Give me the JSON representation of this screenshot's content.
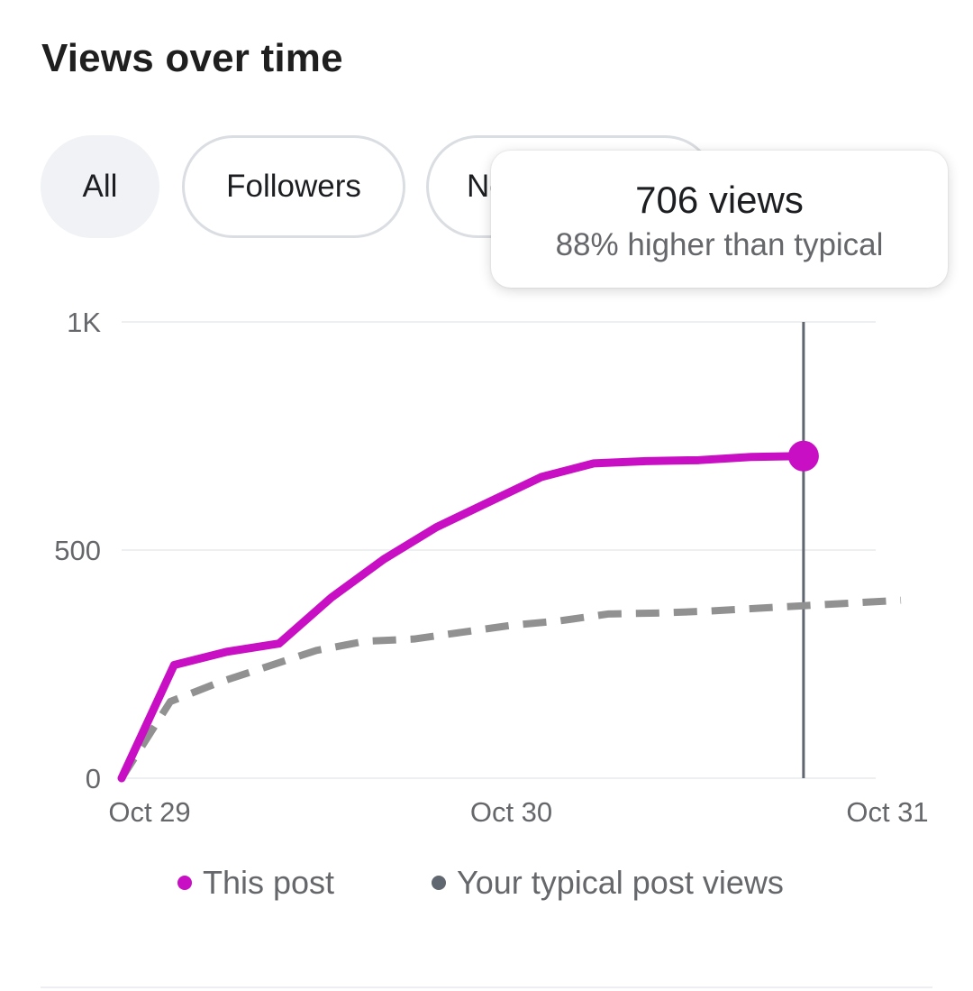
{
  "header": {
    "title": "Views over time"
  },
  "filters": {
    "items": [
      {
        "label": "All",
        "active": true
      },
      {
        "label": "Followers",
        "active": false
      },
      {
        "label": "Non-followers",
        "active": false
      }
    ]
  },
  "tooltip": {
    "value": "706 views",
    "subtitle": "88% higher than typical"
  },
  "colors": {
    "this_post": "#c90fc4",
    "typical": "#919191",
    "cursor": "#606770",
    "grid": "#eeeff1",
    "dot_typical": "#606770"
  },
  "legend": {
    "this_post": "This post",
    "typical": "Your typical post views"
  },
  "chart_data": {
    "type": "line",
    "title": "",
    "xlabel": "",
    "ylabel": "",
    "x_tick_labels": [
      "Oct 29",
      "Oct 30",
      "Oct 31"
    ],
    "y_tick_labels": [
      "0",
      "500",
      "1K"
    ],
    "y_ticks": [
      0,
      500,
      1000
    ],
    "ylim": [
      0,
      1000
    ],
    "x_range_hours": [
      0,
      48
    ],
    "grid": true,
    "legend_position": "bottom",
    "series": [
      {
        "name": "This post",
        "style": "solid",
        "x_hours": [
          0,
          3,
          6,
          9,
          12,
          15,
          18,
          21,
          24,
          27,
          30,
          33,
          36,
          39
        ],
        "values": [
          0,
          248,
          277,
          295,
          396,
          480,
          550,
          605,
          660,
          690,
          695,
          697,
          704,
          706
        ]
      },
      {
        "name": "Your typical post views",
        "style": "dashed",
        "x_hours": [
          0,
          3,
          6,
          9,
          12,
          15,
          18,
          21,
          24,
          27,
          30,
          33,
          36,
          39,
          42,
          45,
          48
        ],
        "values": [
          0,
          168,
          210,
          245,
          280,
          300,
          305,
          320,
          335,
          345,
          360,
          362,
          366,
          372,
          378,
          384,
          390
        ]
      }
    ],
    "highlight": {
      "x_hours": 42,
      "value": 706
    }
  }
}
